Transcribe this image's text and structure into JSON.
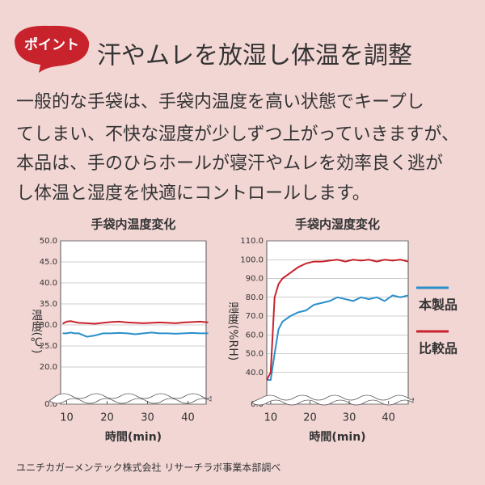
{
  "badge": "ポイント",
  "heading": "汗やムレを放湿し体温を調整",
  "paragraph": [
    "一般的な手袋は、手袋内温度を高い状態でキープし",
    "てしまい、不快な湿度が少しずつ上がっていきますが、",
    "本品は、手のひらホールが寝汗やムレを効率良く逃が",
    "し体温と湿度を快適にコントロールします。"
  ],
  "footer": "ユニチカガーメンテック株式会社 リサーチラボ事業本部調べ",
  "chart_data": [
    {
      "type": "line",
      "title": "手袋内温度変化",
      "ylabel": "温度(℃)",
      "xlabel": "時間(min)",
      "x": [
        9,
        10,
        11,
        12,
        13,
        15,
        17,
        19,
        21,
        23,
        25,
        27,
        29,
        31,
        33,
        35,
        37,
        39,
        41,
        43,
        45
      ],
      "series": [
        {
          "color": "#2a8fc9",
          "values": [
            28,
            28,
            28.2,
            28,
            28,
            27.2,
            27.5,
            28,
            28,
            28.1,
            28,
            27.8,
            28,
            28.2,
            28,
            28,
            27.9,
            28,
            28.1,
            28,
            28
          ]
        },
        {
          "color": "#c8232c",
          "values": [
            30.3,
            30.8,
            30.9,
            30.7,
            30.5,
            30.4,
            30.3,
            30.5,
            30.7,
            30.8,
            30.6,
            30.5,
            30.4,
            30.5,
            30.6,
            30.5,
            30.4,
            30.6,
            30.7,
            30.8,
            30.6
          ]
        }
      ],
      "xlim": [
        8.5,
        44.5
      ],
      "xticks": [
        10,
        20,
        30,
        40
      ],
      "ylim": [
        0,
        50
      ],
      "axis_break": [
        0,
        15
      ],
      "yticks": [
        {
          "value": 0,
          "label": "0.0"
        },
        {
          "value": 20,
          "label": "20.0"
        },
        {
          "value": 25,
          "label": "25.0"
        },
        {
          "value": 30,
          "label": "30.0"
        },
        {
          "value": 35,
          "label": "35.0"
        },
        {
          "value": 40,
          "label": "40.0"
        },
        {
          "value": 45,
          "label": "45.0"
        },
        {
          "value": 50,
          "label": "50.0"
        }
      ],
      "grid": true
    },
    {
      "type": "line",
      "title": "手袋内湿度変化",
      "ylabel": "湿度(%RH)",
      "xlabel": "時間(min)",
      "x": [
        9,
        10,
        11,
        12,
        13,
        15,
        17,
        19,
        21,
        23,
        25,
        27,
        29,
        31,
        33,
        35,
        37,
        39,
        41,
        43,
        45
      ],
      "series": [
        {
          "name": "本製品",
          "color": "#2a8fc9",
          "values": [
            36,
            36,
            50,
            63,
            67,
            70,
            72,
            73,
            76,
            77,
            78,
            80,
            79,
            78,
            80,
            79,
            80,
            78,
            81,
            80,
            81
          ]
        },
        {
          "name": "比較品",
          "color": "#c8232c",
          "values": [
            36,
            40,
            80,
            87,
            90,
            93,
            96,
            98,
            99,
            99,
            99.5,
            100,
            99,
            100,
            99.5,
            100,
            99,
            100,
            99.5,
            100,
            99
          ]
        }
      ],
      "xlim": [
        9,
        45
      ],
      "xticks": [
        10,
        20,
        30,
        40
      ],
      "ylim": [
        0,
        110
      ],
      "axis_break": [
        0,
        30
      ],
      "yticks": [
        {
          "value": 0,
          "label": "0.0"
        },
        {
          "value": 40,
          "label": "40.0"
        },
        {
          "value": 50,
          "label": "50.0"
        },
        {
          "value": 60,
          "label": "60.0"
        },
        {
          "value": 70,
          "label": "70.0"
        },
        {
          "value": 80,
          "label": "80.0"
        },
        {
          "value": 90,
          "label": "90.0"
        },
        {
          "value": 100,
          "label": "100.0"
        },
        {
          "value": 110,
          "label": "110.0"
        }
      ],
      "grid": true,
      "legend": "right"
    }
  ]
}
